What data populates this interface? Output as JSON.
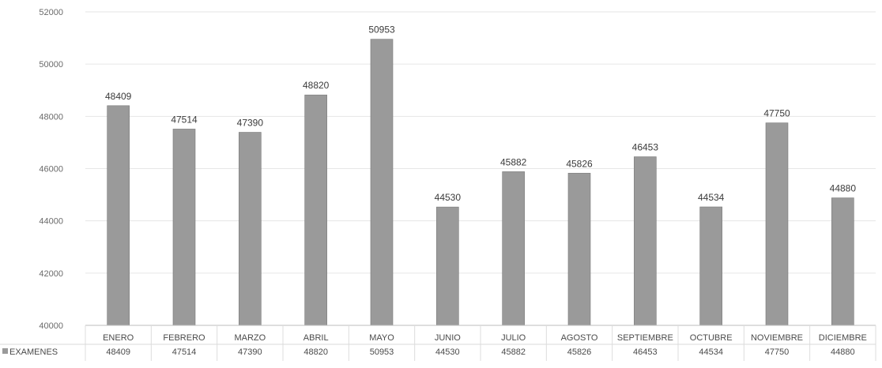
{
  "chart_data": {
    "type": "bar",
    "title": "",
    "xlabel": "",
    "ylabel": "",
    "categories": [
      "ENERO",
      "FEBRERO",
      "MARZO",
      "ABRIL",
      "MAYO",
      "JUNIO",
      "JULIO",
      "AGOSTO",
      "SEPTIEMBRE",
      "OCTUBRE",
      "NOVIEMBRE",
      "DICIEMBRE"
    ],
    "series": [
      {
        "name": "EXAMENES",
        "values": [
          48409,
          47514,
          47390,
          48820,
          50953,
          44530,
          45882,
          45826,
          46453,
          44534,
          47750,
          44880
        ]
      }
    ],
    "ylim": [
      40000,
      52000
    ],
    "yticks": [
      40000,
      42000,
      44000,
      46000,
      48000,
      50000,
      52000
    ],
    "grid": true,
    "data_labels": true,
    "data_table": true,
    "legend_position": "data table row",
    "bar_color": "#9a9a9a"
  }
}
